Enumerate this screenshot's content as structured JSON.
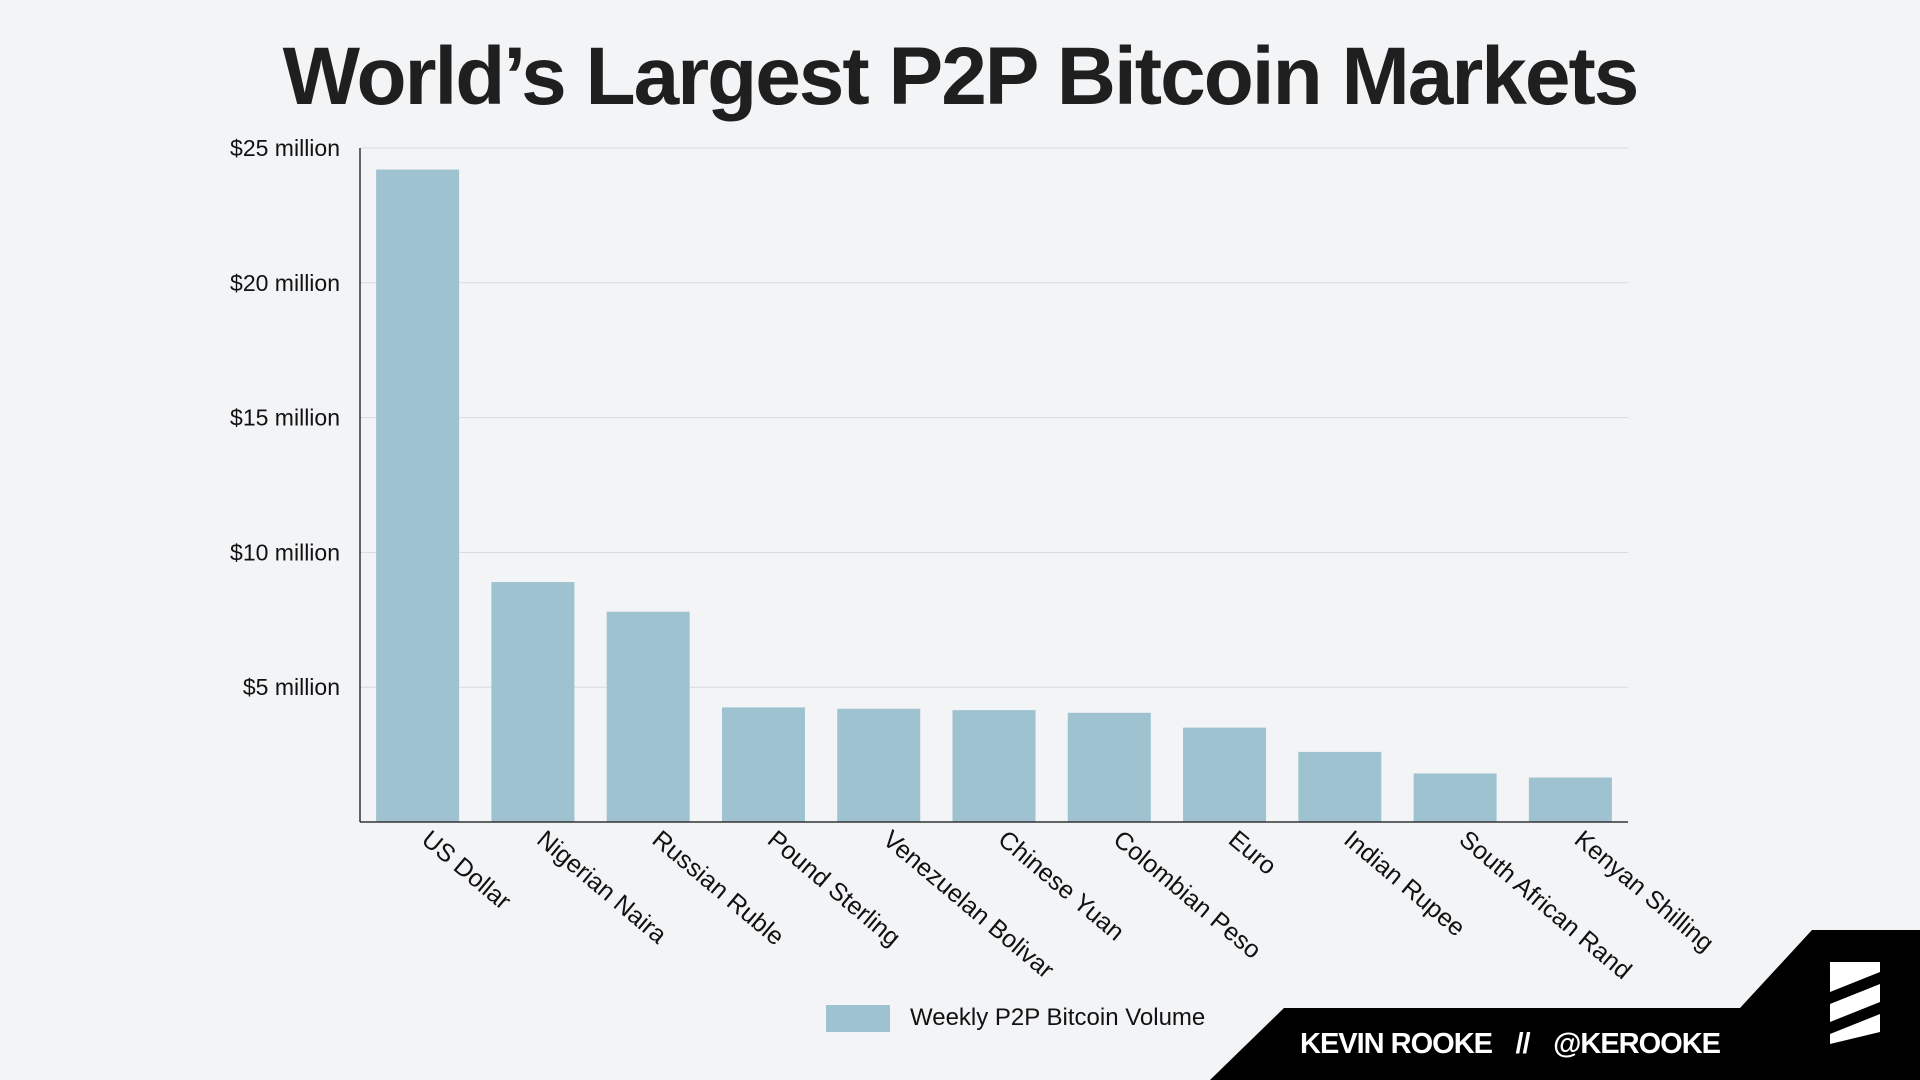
{
  "title": "World’s Largest P2P Bitcoin Markets",
  "chart_data": {
    "type": "bar",
    "title": "World’s Largest P2P Bitcoin Markets",
    "categories": [
      "US Dollar",
      "Nigerian Naira",
      "Russian Ruble",
      "Pound Sterling",
      "Venezuelan Bolivar",
      "Chinese Yuan",
      "Colombian Peso",
      "Euro",
      "Indian Rupee",
      "South African Rand",
      "Kenyan Shilling"
    ],
    "series": [
      {
        "name": "Weekly P2P Bitcoin Volume",
        "values": [
          24.2,
          8.9,
          7.8,
          4.25,
          4.2,
          4.15,
          4.05,
          3.5,
          2.6,
          1.8,
          1.65
        ],
        "color": "#9ec2cf"
      }
    ],
    "ylim": [
      0,
      25
    ],
    "yticks": [
      5,
      10,
      15,
      20,
      25
    ],
    "ytick_labels": [
      "$5 million",
      "$10 million",
      "$15 million",
      "$20 million",
      "$25 million"
    ],
    "xlabel": "",
    "ylabel": "",
    "grid": true,
    "legend_position": "bottom-center"
  },
  "legend": {
    "label": "Weekly P2P Bitcoin Volume"
  },
  "footer": {
    "author": "KEVIN ROOKE",
    "separator": "//",
    "handle": "@KEROOKE"
  },
  "colors": {
    "bar": "#9ec2cf",
    "background": "#f3f4f6",
    "footer": "#000000"
  }
}
